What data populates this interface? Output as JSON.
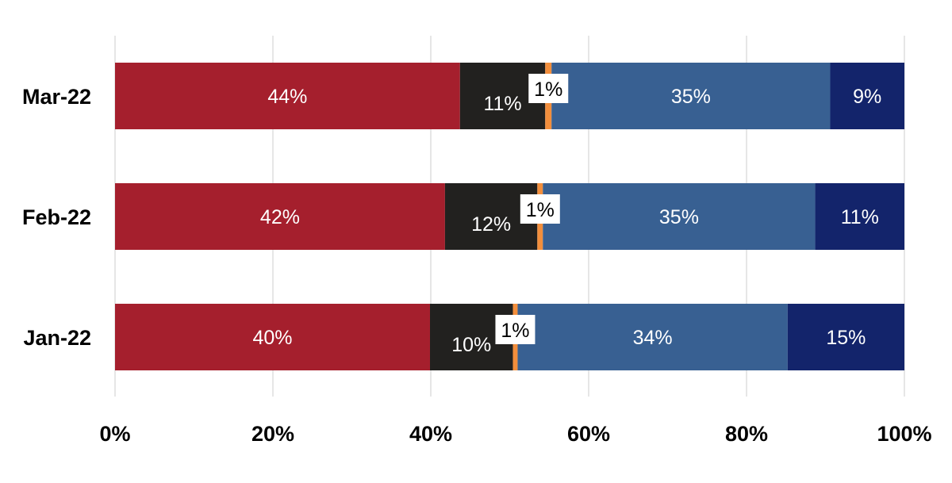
{
  "chart_data": {
    "type": "bar",
    "orientation": "horizontal",
    "stacked": "percent",
    "categories": [
      "Mar-22",
      "Feb-22",
      "Jan-22"
    ],
    "series": [
      {
        "color": "#A51F2D",
        "values": [
          43.7,
          41.8,
          39.9
        ],
        "labels": [
          "44%",
          "42%",
          "40%"
        ]
      },
      {
        "color": "#22211F",
        "values": [
          10.8,
          11.7,
          10.5
        ],
        "labels": [
          "11%",
          "12%",
          "10%"
        ]
      },
      {
        "color": "#F28E3C",
        "values": [
          0.8,
          0.7,
          0.6
        ],
        "labels": [
          "1%",
          "1%",
          "1%"
        ]
      },
      {
        "color": "#386092",
        "values": [
          35.3,
          34.5,
          34.2
        ],
        "labels": [
          "35%",
          "35%",
          "34%"
        ]
      },
      {
        "color": "#13246B",
        "values": [
          9.4,
          11.3,
          14.8
        ],
        "labels": [
          "9%",
          "11%",
          "15%"
        ]
      }
    ],
    "xlim": [
      0,
      100
    ],
    "x_ticks": [
      "0%",
      "20%",
      "40%",
      "60%",
      "80%",
      "100%"
    ],
    "grid": "vertical",
    "legend": "none"
  }
}
